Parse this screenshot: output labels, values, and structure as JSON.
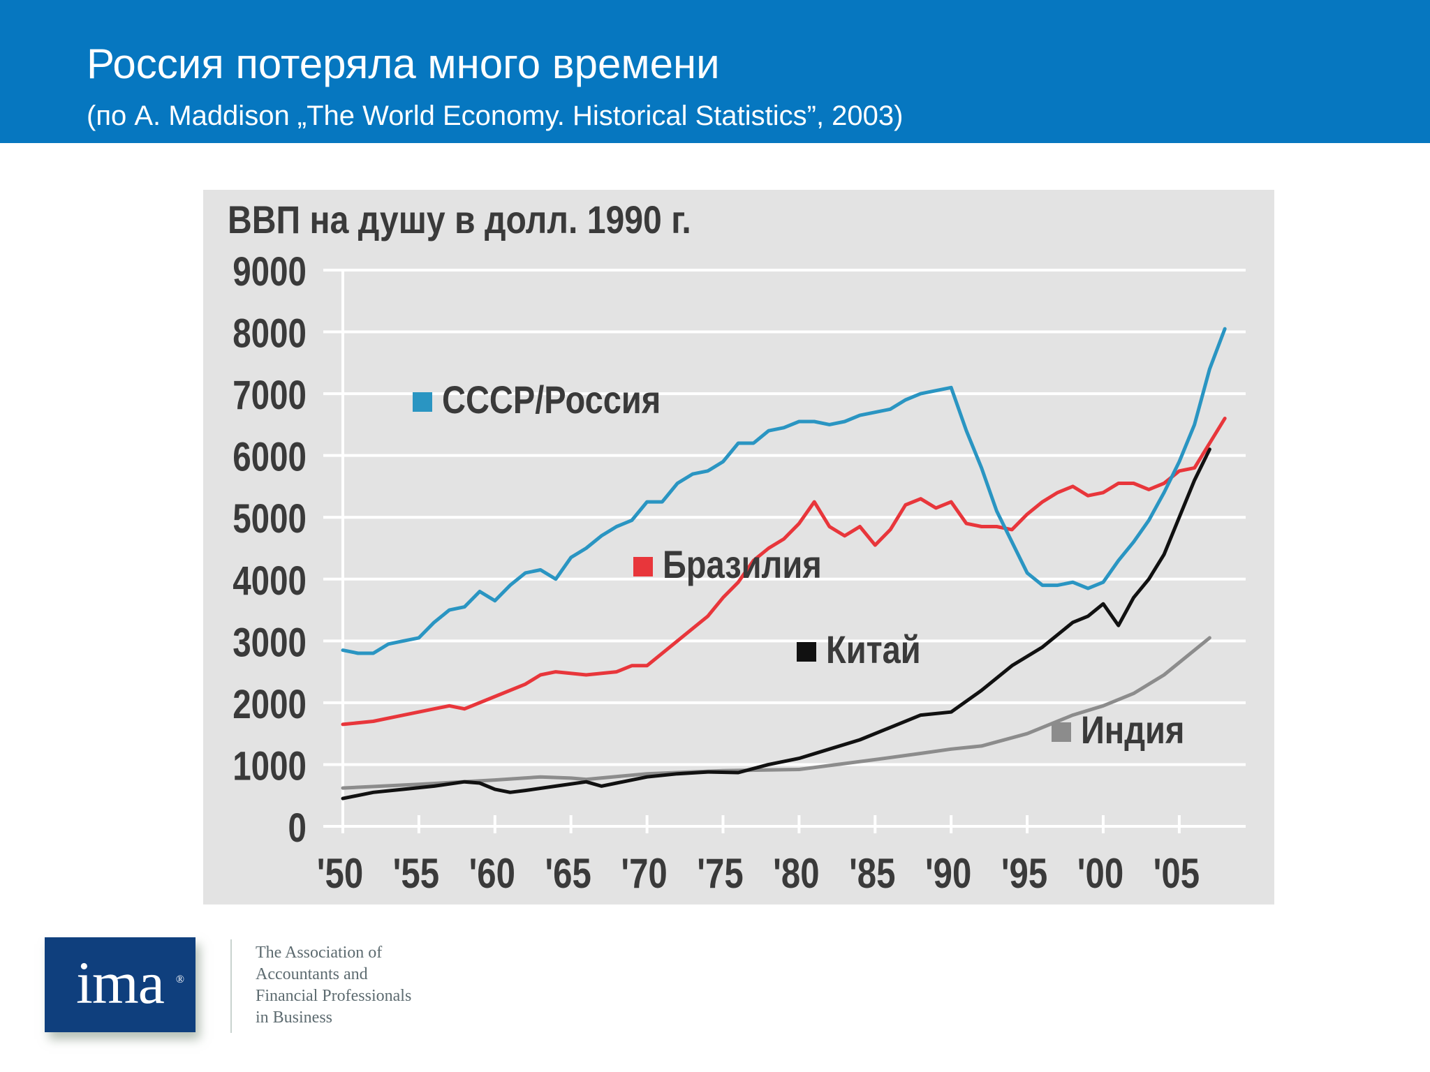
{
  "slide": {
    "title": "Россия потеряла много времени",
    "subtitle": "(по A. Maddison „The World Economy. Historical Statistics”, 2003)"
  },
  "footer": {
    "logo_text": "ima",
    "logo_mark": "®",
    "tagline": [
      "The Association of",
      "Accountants and",
      "Financial Professionals",
      "in Business"
    ]
  },
  "chart_data": {
    "type": "line",
    "title": "ВВП на душу  в долл. 1990 г.",
    "xlabel": "",
    "ylabel": "",
    "xlim": [
      1950,
      2009
    ],
    "ylim": [
      0,
      9000
    ],
    "yticks": [
      0,
      1000,
      2000,
      3000,
      4000,
      5000,
      6000,
      7000,
      8000,
      9000
    ],
    "xticks": [
      1950,
      1955,
      1960,
      1965,
      1970,
      1975,
      1980,
      1985,
      1990,
      1995,
      2000,
      2005
    ],
    "xtick_labels": [
      "'50",
      "'55",
      "'60",
      "'65",
      "'70",
      "'75",
      "'80",
      "'85",
      "'90",
      "'95",
      "'00",
      "'05"
    ],
    "grid": true,
    "legend": "inline",
    "series": [
      {
        "name": "СССР/Россия",
        "color": "#2a95c2",
        "x": [
          1950,
          1951,
          1952,
          1953,
          1954,
          1955,
          1956,
          1957,
          1958,
          1959,
          1960,
          1961,
          1962,
          1963,
          1964,
          1965,
          1966,
          1967,
          1968,
          1969,
          1970,
          1971,
          1972,
          1973,
          1974,
          1975,
          1976,
          1977,
          1978,
          1979,
          1980,
          1981,
          1982,
          1983,
          1984,
          1985,
          1986,
          1987,
          1988,
          1989,
          1990,
          1991,
          1992,
          1993,
          1994,
          1995,
          1996,
          1997,
          1998,
          1999,
          2000,
          2001,
          2002,
          2003,
          2004,
          2005,
          2006,
          2007,
          2008
        ],
        "values": [
          2850,
          2800,
          2800,
          2950,
          3000,
          3050,
          3300,
          3500,
          3550,
          3800,
          3650,
          3900,
          4100,
          4150,
          4000,
          4350,
          4500,
          4700,
          4850,
          4950,
          5250,
          5250,
          5550,
          5700,
          5750,
          5900,
          6200,
          6200,
          6400,
          6450,
          6550,
          6550,
          6500,
          6550,
          6650,
          6700,
          6750,
          6900,
          7000,
          7050,
          7100,
          6400,
          5800,
          5100,
          4600,
          4100,
          3900,
          3900,
          3950,
          3850,
          3950,
          4300,
          4600,
          4950,
          5400,
          5900,
          6500,
          7400,
          8050
        ]
      },
      {
        "name": "Бразилия",
        "color": "#e8363b",
        "x": [
          1950,
          1952,
          1954,
          1956,
          1957,
          1958,
          1960,
          1962,
          1963,
          1964,
          1966,
          1968,
          1969,
          1970,
          1972,
          1974,
          1975,
          1976,
          1977,
          1978,
          1979,
          1980,
          1981,
          1982,
          1983,
          1984,
          1985,
          1986,
          1987,
          1988,
          1989,
          1990,
          1991,
          1992,
          1993,
          1994,
          1995,
          1996,
          1997,
          1998,
          1999,
          2000,
          2001,
          2002,
          2003,
          2004,
          2005,
          2006,
          2007,
          2008
        ],
        "values": [
          1650,
          1700,
          1800,
          1900,
          1950,
          1900,
          2100,
          2300,
          2450,
          2500,
          2450,
          2500,
          2600,
          2600,
          3000,
          3400,
          3700,
          3950,
          4300,
          4500,
          4650,
          4900,
          5250,
          4850,
          4700,
          4850,
          4550,
          4800,
          5200,
          5300,
          5150,
          5250,
          4900,
          4850,
          4850,
          4800,
          5050,
          5250,
          5400,
          5500,
          5350,
          5400,
          5550,
          5550,
          5450,
          5550,
          5750,
          5800,
          6200,
          6600
        ]
      },
      {
        "name": "Китай",
        "color": "#111111",
        "x": [
          1950,
          1952,
          1954,
          1956,
          1958,
          1959,
          1960,
          1961,
          1962,
          1964,
          1966,
          1967,
          1968,
          1970,
          1972,
          1974,
          1976,
          1978,
          1980,
          1982,
          1984,
          1986,
          1988,
          1990,
          1992,
          1994,
          1996,
          1998,
          1999,
          2000,
          2001,
          2002,
          2003,
          2004,
          2005,
          2006,
          2007
        ],
        "values": [
          450,
          550,
          600,
          650,
          720,
          700,
          600,
          550,
          580,
          650,
          720,
          650,
          700,
          800,
          850,
          880,
          870,
          1000,
          1100,
          1250,
          1400,
          1600,
          1800,
          1850,
          2200,
          2600,
          2900,
          3300,
          3400,
          3600,
          3250,
          3700,
          4000,
          4400,
          5000,
          5600,
          6100
        ]
      },
      {
        "name": "Индия",
        "color": "#8c8c8c",
        "x": [
          1950,
          1955,
          1960,
          1963,
          1965,
          1966,
          1970,
          1975,
          1980,
          1985,
          1988,
          1990,
          1992,
          1995,
          1998,
          2000,
          2002,
          2004,
          2006,
          2007
        ],
        "values": [
          620,
          680,
          750,
          800,
          780,
          760,
          850,
          900,
          920,
          1080,
          1180,
          1250,
          1300,
          1500,
          1800,
          1950,
          2150,
          2450,
          2850,
          3050
        ]
      }
    ]
  }
}
